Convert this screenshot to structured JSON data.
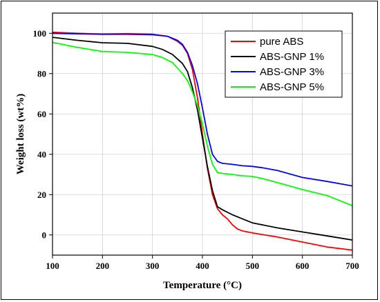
{
  "chart_data": {
    "type": "line",
    "xlabel": "Temperature (°C)",
    "ylabel": "Weight loss (wt%)",
    "xlim": [
      100,
      700
    ],
    "ylim": [
      -10,
      110
    ],
    "xticks": [
      100,
      200,
      300,
      400,
      500,
      600,
      700
    ],
    "yticks": [
      0,
      20,
      40,
      60,
      80,
      100
    ],
    "grid": true,
    "legend_position": "top-right",
    "series": [
      {
        "name": "pure ABS",
        "color": "#ff0000",
        "x": [
          100,
          150,
          200,
          250,
          300,
          330,
          350,
          360,
          370,
          380,
          390,
          400,
          410,
          420,
          430,
          440,
          450,
          460,
          470,
          480,
          500,
          550,
          600,
          650,
          700
        ],
        "y": [
          100.5,
          100,
          99.6,
          99.8,
          99.5,
          98.5,
          96,
          94,
          90,
          82,
          68,
          50,
          33,
          20,
          13,
          10,
          8,
          5,
          3,
          2,
          1,
          -1,
          -3.5,
          -6,
          -7.5
        ]
      },
      {
        "name": "ABS-GNP 1%",
        "color": "#000000",
        "x": [
          100,
          150,
          200,
          250,
          300,
          320,
          340,
          360,
          370,
          380,
          390,
          400,
          410,
          420,
          430,
          440,
          460,
          480,
          500,
          550,
          600,
          650,
          700
        ],
        "y": [
          98,
          96.5,
          95.3,
          95,
          93.5,
          92,
          89.5,
          85,
          81,
          73,
          62,
          48,
          34,
          22,
          14,
          12.5,
          10,
          8,
          6,
          3.5,
          1.5,
          -0.5,
          -2.5
        ]
      },
      {
        "name": "ABS-GNP 3%",
        "color": "#0000ff",
        "x": [
          100,
          150,
          200,
          250,
          300,
          330,
          350,
          360,
          370,
          380,
          390,
          400,
          410,
          420,
          430,
          440,
          460,
          480,
          500,
          520,
          550,
          600,
          650,
          700
        ],
        "y": [
          100,
          99.7,
          99.5,
          99.5,
          99.3,
          98.5,
          96.5,
          94.5,
          90.5,
          84,
          75,
          63,
          50,
          40,
          36.5,
          35.5,
          35,
          34.3,
          34,
          33.3,
          32,
          28.5,
          26.5,
          24.3
        ]
      },
      {
        "name": "ABS-GNP 5%",
        "color": "#00ff00",
        "x": [
          100,
          150,
          200,
          250,
          300,
          320,
          340,
          360,
          370,
          380,
          390,
          400,
          410,
          420,
          430,
          440,
          460,
          480,
          500,
          520,
          550,
          600,
          650,
          700
        ],
        "y": [
          95.5,
          93,
          91,
          90.5,
          89.5,
          88,
          85.5,
          80,
          76.5,
          71,
          64,
          55,
          44,
          35,
          31,
          30.5,
          30,
          29.3,
          29,
          28,
          26,
          22.5,
          19.5,
          14.5
        ]
      }
    ]
  }
}
